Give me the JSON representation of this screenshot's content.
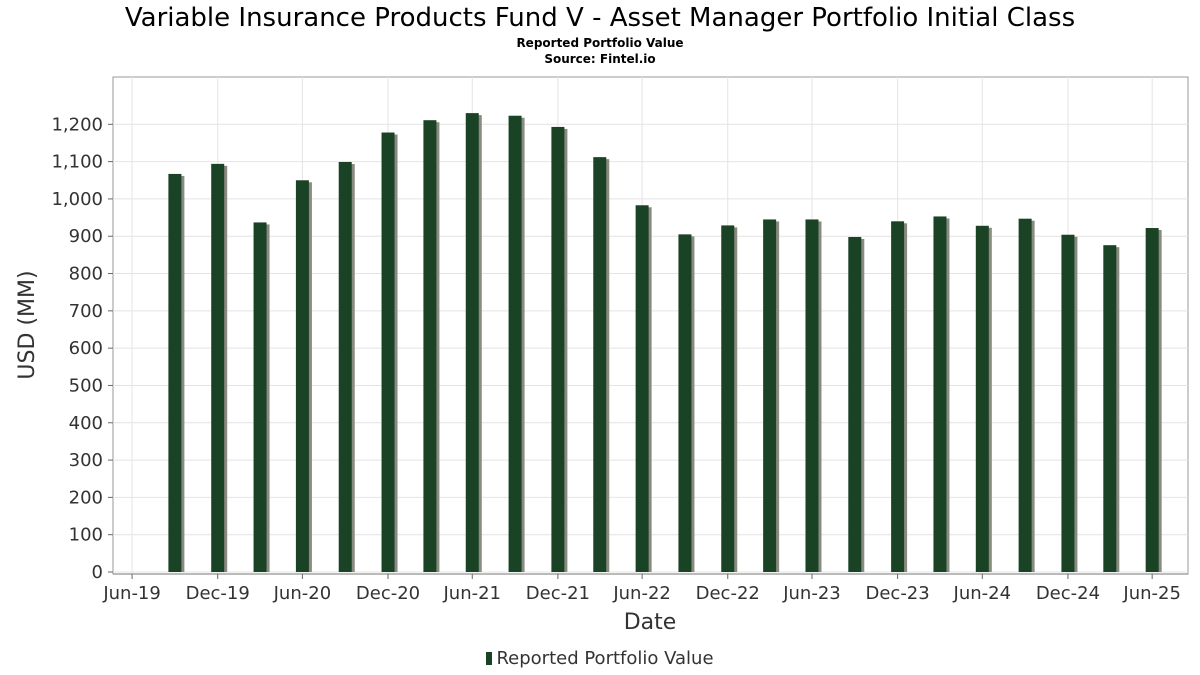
{
  "chart_data": {
    "type": "bar",
    "title": "Variable Insurance Products Fund V - Asset Manager Portfolio Initial Class",
    "subtitle": "Reported Portfolio Value",
    "source": "Source: Fintel.io",
    "xlabel": "Date",
    "ylabel": "USD (MM)",
    "ylim": [
      0,
      1300
    ],
    "yticks": [
      0,
      100,
      200,
      300,
      400,
      500,
      600,
      700,
      800,
      900,
      1000,
      1100,
      1200
    ],
    "ytick_labels": [
      "0",
      "100",
      "200",
      "300",
      "400",
      "500",
      "600",
      "700",
      "800",
      "900",
      "1,000",
      "1,100",
      "1,200"
    ],
    "xlim": [
      "2019-05-20",
      "2025-09-15"
    ],
    "xticks": [
      {
        "date": "2019-06-30",
        "label": "Jun-19"
      },
      {
        "date": "2019-12-31",
        "label": "Dec-19"
      },
      {
        "date": "2020-06-30",
        "label": "Jun-20"
      },
      {
        "date": "2020-12-31",
        "label": "Dec-20"
      },
      {
        "date": "2021-06-30",
        "label": "Jun-21"
      },
      {
        "date": "2021-12-31",
        "label": "Dec-21"
      },
      {
        "date": "2022-06-30",
        "label": "Jun-22"
      },
      {
        "date": "2022-12-31",
        "label": "Dec-22"
      },
      {
        "date": "2023-06-30",
        "label": "Jun-23"
      },
      {
        "date": "2023-12-31",
        "label": "Dec-23"
      },
      {
        "date": "2024-06-30",
        "label": "Jun-24"
      },
      {
        "date": "2024-12-31",
        "label": "Dec-24"
      },
      {
        "date": "2025-06-30",
        "label": "Jun-25"
      }
    ],
    "grid": true,
    "legend_position": "bottom-center",
    "series": [
      {
        "name": "Reported Portfolio Value",
        "color": "#1a4225",
        "shadow_color": "#8a8a80",
        "points": [
          {
            "x": "2019-09-30",
            "y": 1067
          },
          {
            "x": "2019-12-31",
            "y": 1094
          },
          {
            "x": "2020-03-31",
            "y": 937
          },
          {
            "x": "2020-06-30",
            "y": 1050
          },
          {
            "x": "2020-09-30",
            "y": 1099
          },
          {
            "x": "2020-12-31",
            "y": 1178
          },
          {
            "x": "2021-03-31",
            "y": 1211
          },
          {
            "x": "2021-06-30",
            "y": 1230
          },
          {
            "x": "2021-09-30",
            "y": 1223
          },
          {
            "x": "2021-12-31",
            "y": 1193
          },
          {
            "x": "2022-03-31",
            "y": 1112
          },
          {
            "x": "2022-06-30",
            "y": 983
          },
          {
            "x": "2022-09-30",
            "y": 905
          },
          {
            "x": "2022-12-31",
            "y": 929
          },
          {
            "x": "2023-03-31",
            "y": 945
          },
          {
            "x": "2023-06-30",
            "y": 945
          },
          {
            "x": "2023-09-30",
            "y": 898
          },
          {
            "x": "2023-12-31",
            "y": 940
          },
          {
            "x": "2024-03-31",
            "y": 953
          },
          {
            "x": "2024-06-30",
            "y": 928
          },
          {
            "x": "2024-09-30",
            "y": 947
          },
          {
            "x": "2024-12-31",
            "y": 904
          },
          {
            "x": "2025-03-31",
            "y": 876
          },
          {
            "x": "2025-06-30",
            "y": 922
          }
        ]
      }
    ]
  }
}
